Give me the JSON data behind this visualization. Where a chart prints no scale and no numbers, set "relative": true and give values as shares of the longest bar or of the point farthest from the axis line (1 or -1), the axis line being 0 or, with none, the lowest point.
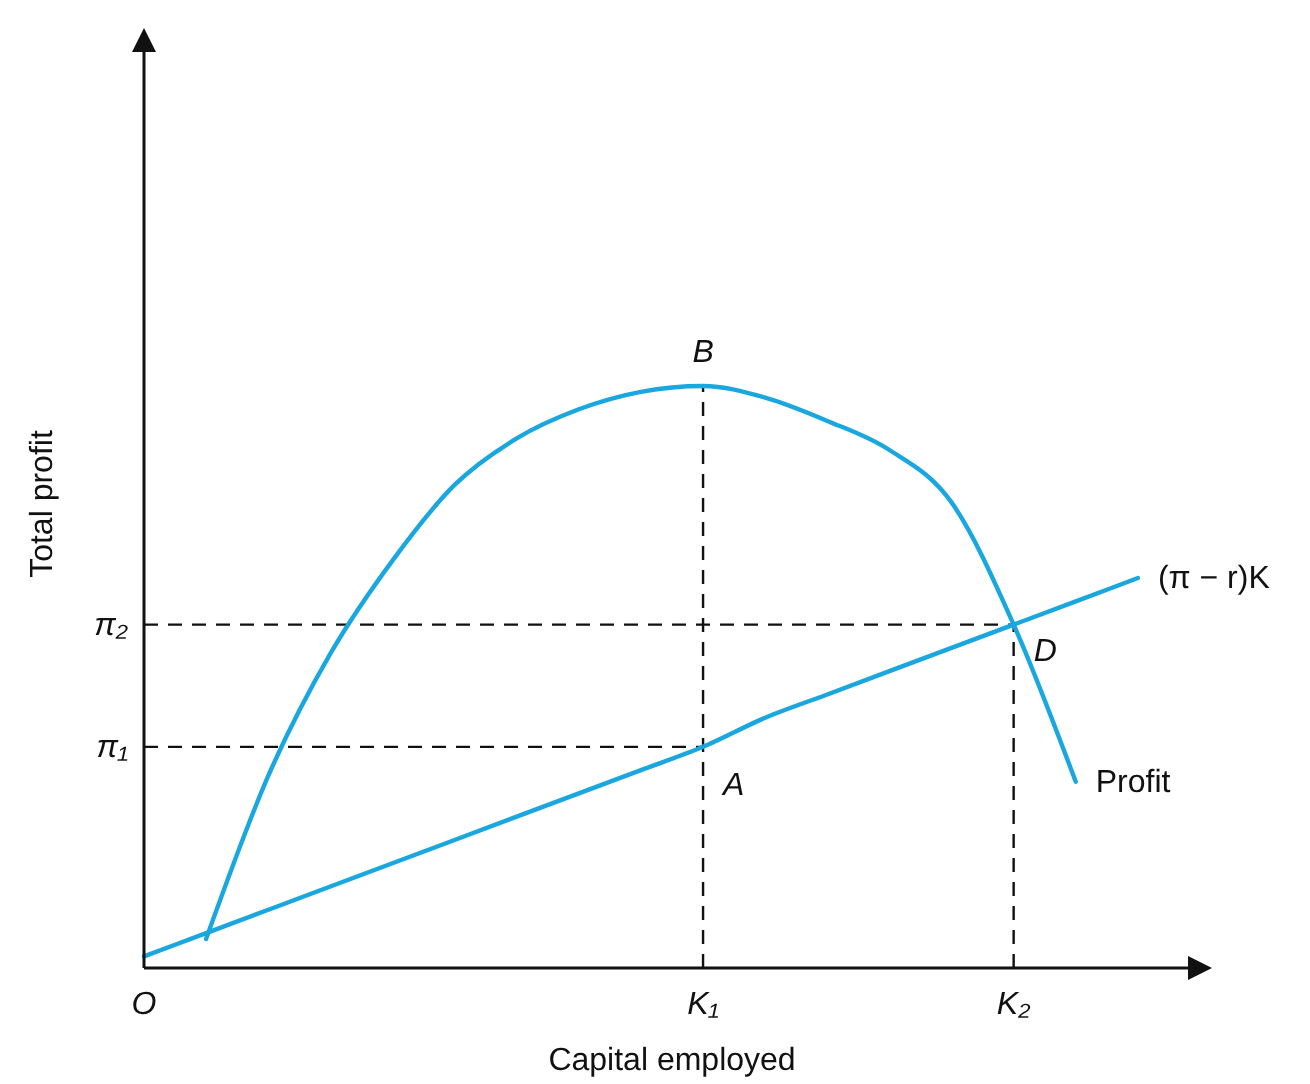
{
  "chart_data": {
    "type": "line",
    "xlabel": "Capital employed",
    "ylabel": "Total profit",
    "relative": true,
    "categories": [
      "O",
      null,
      null,
      null,
      null,
      null,
      null,
      null,
      null,
      "K₁",
      null,
      null,
      null,
      null,
      "K₂",
      null,
      null,
      null
    ],
    "series": [
      {
        "name": "Profit",
        "color": "#1aa7e0",
        "values": [
          null,
          0.05,
          0.33,
          0.54,
          0.7,
          0.83,
          0.91,
          0.96,
          0.99,
          1,
          0.98,
          0.94,
          0.89,
          0.8,
          0.59,
          0.32,
          null,
          null
        ]
      },
      {
        "name": "(π − r)K",
        "color": "#1aa7e0",
        "values": [
          0.02,
          0.06,
          0.1,
          0.14,
          0.18,
          0.22,
          0.26,
          0.3,
          0.34,
          0.38,
          0.43,
          0.47,
          0.51,
          0.55,
          0.59,
          0.63,
          0.67,
          null
        ]
      }
    ],
    "ref_lines": [
      {
        "axis": "x",
        "value": "K₁",
        "line_style": "dashed"
      },
      {
        "axis": "x",
        "value": "K₂",
        "line_style": "dashed"
      },
      {
        "axis": "y",
        "value": 0.38,
        "label": "π₁",
        "line_style": "dashed"
      },
      {
        "axis": "y",
        "value": 0.59,
        "label": "π₂",
        "line_style": "dashed"
      }
    ],
    "annotations": [
      {
        "text": "B",
        "x": "K₁",
        "y": 1
      },
      {
        "text": "A",
        "x": "K₁",
        "y": 0.38
      },
      {
        "text": "D",
        "x": "K₂",
        "y": 0.59
      }
    ],
    "marker": "none",
    "line_style": "solid"
  }
}
